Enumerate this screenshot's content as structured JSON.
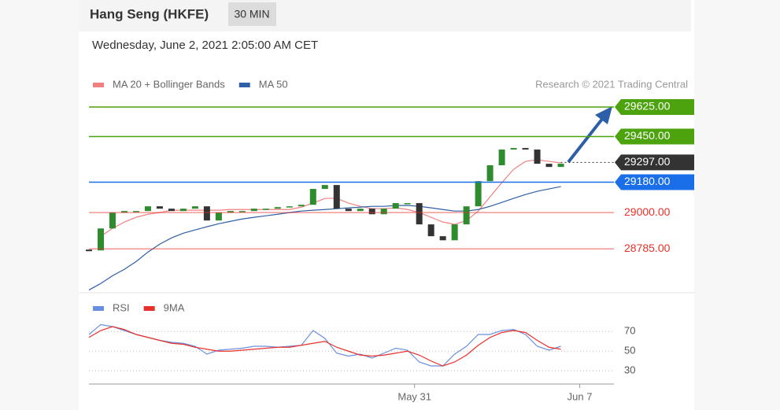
{
  "header": {
    "title": "Hang Seng (HKFE)",
    "interval": "30 MIN",
    "date": "Wednesday, June 2, 2021 2:05:00 AM CET"
  },
  "chart_data": [
    {
      "type": "candlestick",
      "source": "Research © 2021 Trading Central",
      "xlim": [
        0,
        44.5
      ],
      "ylim": [
        28530,
        29676
      ],
      "close": [
        28776,
        28906,
        29000,
        29009,
        29009,
        29037,
        29023,
        29009,
        29023,
        29037,
        28953,
        29000,
        29009,
        29009,
        29023,
        29023,
        29032,
        29037,
        29046,
        29140,
        29163,
        29023,
        29009,
        29023,
        28990,
        29023,
        29056,
        29056,
        28930,
        28860,
        28836,
        28930,
        29037,
        29186,
        29280,
        29373,
        29382,
        29373,
        29289,
        29270,
        29289
      ],
      "up_color": "#2e8b2e",
      "down_color": "#333333",
      "series": [
        {
          "name": "MA 20 + Bollinger Bands",
          "color": "#f08080",
          "values": [
            null,
            28860,
            28906,
            28944,
            28972,
            28990,
            29000,
            29014,
            29014,
            29014,
            29014,
            29014,
            29018,
            29018,
            29018,
            29018,
            29018,
            29018,
            29032,
            29056,
            29084,
            29084,
            29056,
            29037,
            29023,
            29023,
            29028,
            29018,
            29000,
            28972,
            28944,
            28930,
            28953,
            29009,
            29093,
            29177,
            29256,
            29303,
            29313,
            29303,
            29294
          ]
        },
        {
          "name": "MA 50",
          "color": "#2f5fa5",
          "values": [
            28542,
            28580,
            28626,
            28664,
            28710,
            28766,
            28813,
            28850,
            28878,
            28897,
            28916,
            28934,
            28948,
            28962,
            28972,
            28981,
            28990,
            29000,
            29009,
            29014,
            29018,
            29023,
            29028,
            29032,
            29037,
            29037,
            29042,
            29042,
            29037,
            29028,
            29018,
            29009,
            29009,
            29018,
            29037,
            29060,
            29084,
            29107,
            29126,
            29140,
            29154
          ]
        }
      ],
      "levels": [
        {
          "value": 29625,
          "label": "29625.00",
          "color": "#4ca30d",
          "badge": true,
          "dotted": false
        },
        {
          "value": 29450,
          "label": "29450.00",
          "color": "#4ca30d",
          "badge": true,
          "dotted": false
        },
        {
          "value": 29297,
          "label": "29297.00",
          "color": "#333333",
          "badge": true,
          "dotted": true
        },
        {
          "value": 29180,
          "label": "29180.00",
          "color": "#1a6fe8",
          "badge": true,
          "dotted": false
        },
        {
          "value": 29000,
          "label": "29000.00",
          "color": "#e8302a",
          "badge": false,
          "dotted": false
        },
        {
          "value": 28785,
          "label": "28785.00",
          "color": "#e8302a",
          "badge": false,
          "dotted": false
        }
      ]
    },
    {
      "type": "line",
      "xlim": [
        0,
        44.5
      ],
      "ylim": [
        23,
        83
      ],
      "yticks": [
        30,
        50,
        70
      ],
      "xticks": [
        {
          "value": 27.6,
          "label": "May 31"
        },
        {
          "value": 41.6,
          "label": "Jun 7"
        }
      ],
      "series": [
        {
          "name": "RSI",
          "color": "#6a8fe0",
          "values": [
            67,
            77,
            75,
            71,
            67,
            64,
            61,
            59,
            58,
            55,
            47,
            51,
            52,
            53,
            55,
            55,
            54,
            55,
            56,
            71,
            63,
            48,
            45,
            47,
            43,
            48,
            53,
            51,
            39,
            35,
            35,
            47,
            55,
            67,
            67,
            71,
            72,
            67,
            55,
            51,
            55
          ]
        },
        {
          "name": "9MA",
          "color": "#e8302a",
          "values": [
            64,
            71,
            75,
            72,
            67,
            64,
            61,
            58,
            57,
            54,
            52,
            50,
            50,
            51,
            52,
            53,
            54,
            54,
            56,
            58,
            60,
            54,
            50,
            46,
            45,
            46,
            48,
            50,
            46,
            40,
            35,
            39,
            46,
            56,
            64,
            69,
            71,
            69,
            61,
            54,
            52
          ]
        }
      ]
    }
  ]
}
